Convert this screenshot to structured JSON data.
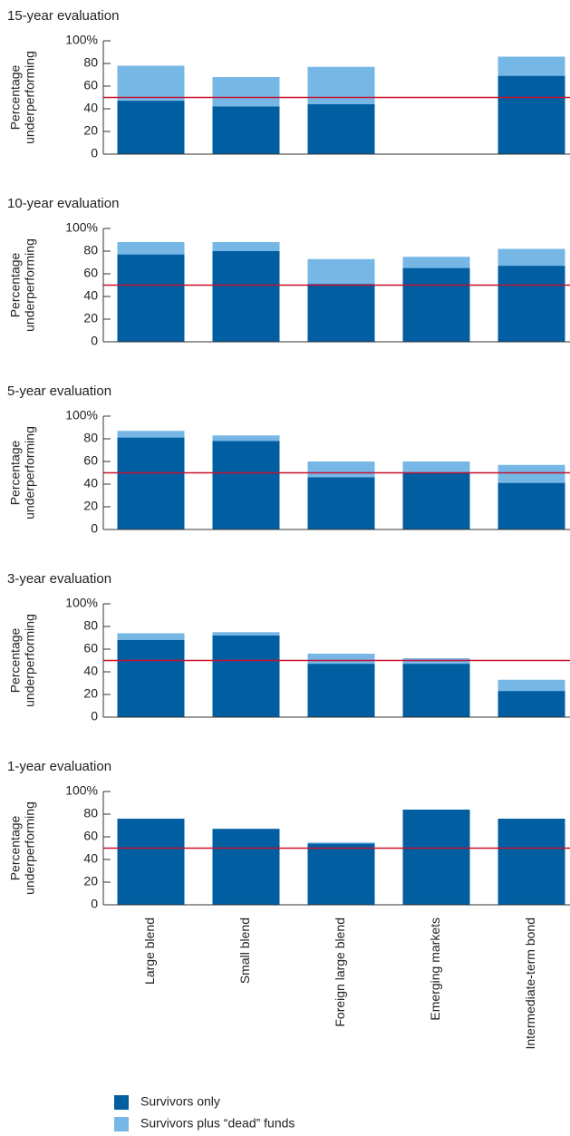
{
  "chart_data": [
    {
      "type": "bar",
      "title": "15-year evaluation",
      "ylabel": [
        "Percentage",
        "underperforming"
      ],
      "categories": [
        null,
        null,
        null,
        null,
        null
      ],
      "series": [
        {
          "color": "#76b7e5",
          "values": [
            78,
            68,
            77,
            null,
            86
          ]
        },
        {
          "color": "#005ea1",
          "values": [
            47,
            42,
            44,
            null,
            69
          ]
        }
      ],
      "ylim": [
        0,
        100
      ],
      "yticks": [
        0,
        20,
        40,
        60,
        80,
        {
          "value": 100,
          "label": "100%"
        }
      ],
      "reference_line": 50,
      "reference_color": "#c8102e"
    },
    {
      "type": "bar",
      "title": "10-year evaluation",
      "ylabel": [
        "Percentage",
        "underperforming"
      ],
      "categories": [
        null,
        null,
        null,
        null,
        null
      ],
      "series": [
        {
          "color": "#76b7e5",
          "values": [
            88,
            88,
            73,
            75,
            82
          ]
        },
        {
          "color": "#005ea1",
          "values": [
            77,
            80,
            51,
            65,
            67
          ]
        }
      ],
      "ylim": [
        0,
        100
      ],
      "yticks": [
        0,
        20,
        40,
        60,
        80,
        {
          "value": 100,
          "label": "100%"
        }
      ],
      "reference_line": 50,
      "reference_color": "#c8102e"
    },
    {
      "type": "bar",
      "title": "5-year evaluation",
      "ylabel": [
        "Percentage",
        "underperforming"
      ],
      "categories": [
        null,
        null,
        null,
        null,
        null
      ],
      "series": [
        {
          "color": "#76b7e5",
          "values": [
            87,
            83,
            60,
            60,
            57
          ]
        },
        {
          "color": "#005ea1",
          "values": [
            81,
            78,
            46,
            50,
            41
          ]
        }
      ],
      "ylim": [
        0,
        100
      ],
      "yticks": [
        0,
        20,
        40,
        60,
        80,
        {
          "value": 100,
          "label": "100%"
        }
      ],
      "reference_line": 50,
      "reference_color": "#c8102e"
    },
    {
      "type": "bar",
      "title": "3-year evaluation",
      "ylabel": [
        "Percentage",
        "underperforming"
      ],
      "categories": [
        null,
        null,
        null,
        null,
        null
      ],
      "series": [
        {
          "color": "#76b7e5",
          "values": [
            74,
            75,
            56,
            52,
            33
          ]
        },
        {
          "color": "#005ea1",
          "values": [
            68,
            72,
            47,
            47,
            23
          ]
        }
      ],
      "ylim": [
        0,
        100
      ],
      "yticks": [
        0,
        20,
        40,
        60,
        80,
        {
          "value": 100,
          "label": "100%"
        }
      ],
      "reference_line": 50,
      "reference_color": "#c8102e"
    },
    {
      "type": "bar",
      "title": "1-year evaluation",
      "ylabel": [
        "Percentage",
        "underperforming"
      ],
      "categories": [
        "Large blend",
        "Small blend",
        "Foreign large blend",
        "Emerging markets",
        "Intermediate-term bond"
      ],
      "series": [
        {
          "name": "Survivors plus “dead” funds",
          "color": "#76b7e5",
          "values": [
            76,
            67,
            55,
            84,
            76
          ]
        },
        {
          "name": "Survivors only",
          "color": "#005ea1",
          "values": [
            76,
            67,
            54,
            84,
            76
          ]
        }
      ],
      "ylim": [
        0,
        100
      ],
      "yticks": [
        0,
        20,
        40,
        60,
        80,
        {
          "value": 100,
          "label": "100%"
        }
      ],
      "reference_line": 50,
      "reference_color": "#c8102e"
    }
  ]
}
